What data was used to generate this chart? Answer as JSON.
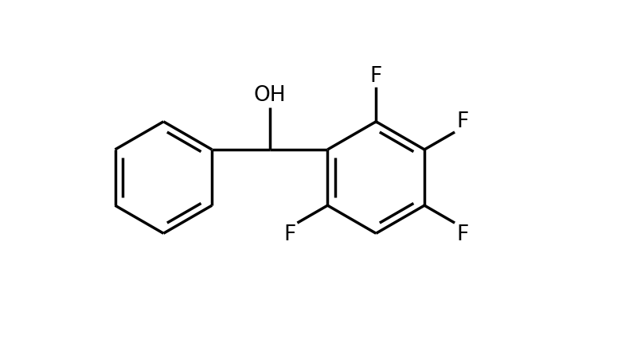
{
  "background_color": "#ffffff",
  "line_color": "#000000",
  "line_width": 2.5,
  "font_size": 19,
  "figsize": [
    7.9,
    4.27
  ],
  "dpi": 100,
  "xlim": [
    -4.2,
    5.8
  ],
  "ylim": [
    -3.2,
    2.8
  ]
}
